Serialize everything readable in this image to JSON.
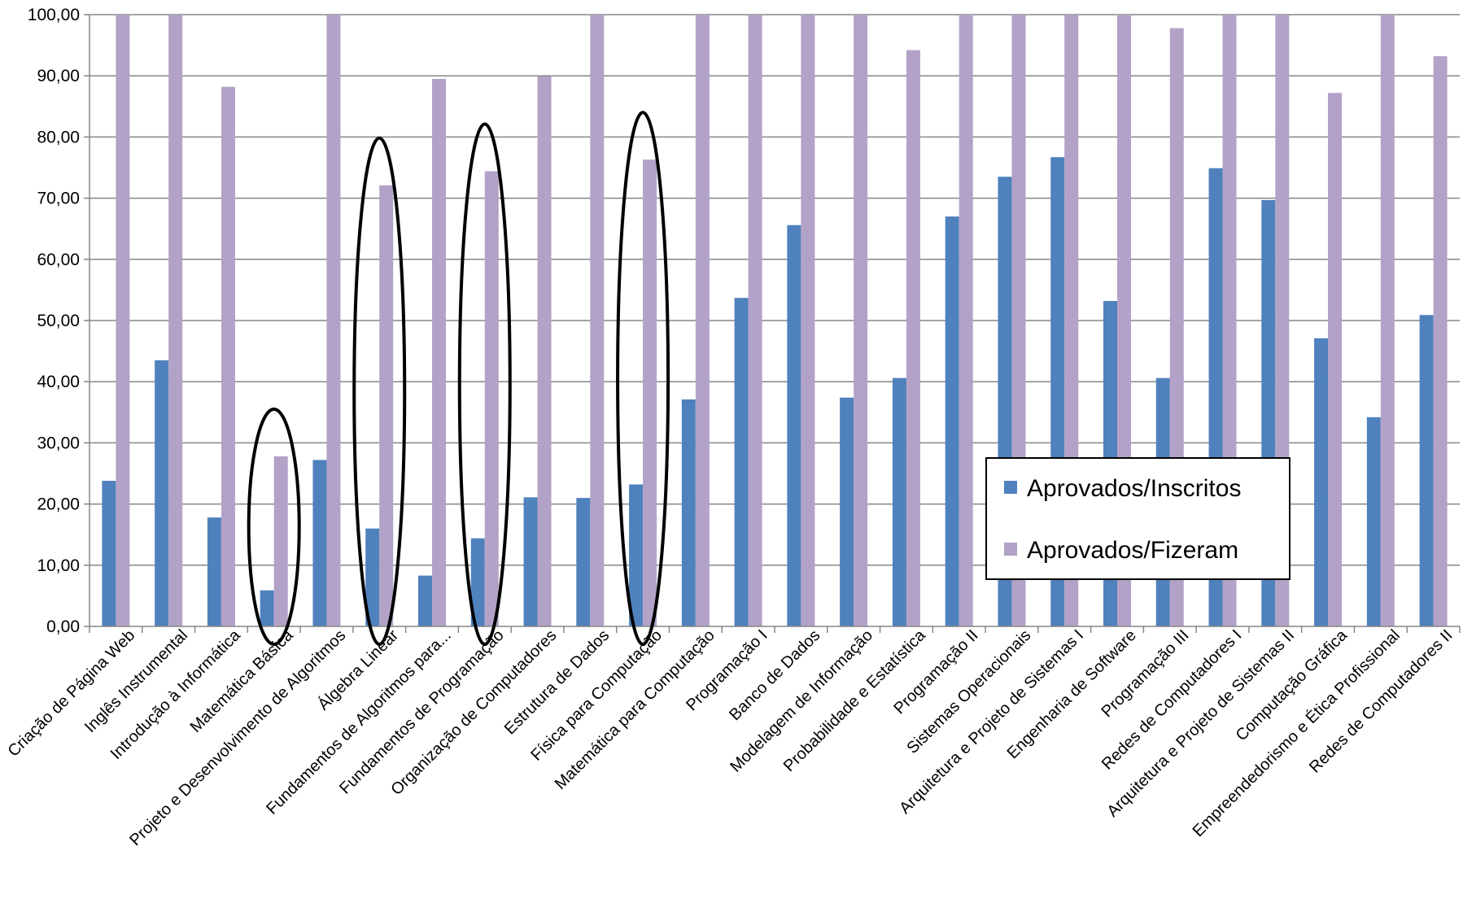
{
  "chart_data": {
    "type": "bar",
    "categories": [
      "Criação de Página Web",
      "Inglês Instrumental",
      "Introdução à Informática",
      "Matemática Básica",
      "Projeto e Desenvolvimento de Algoritmos",
      "Álgebra Linear",
      "Fundamentos de Algoritmos para...",
      "Fundamentos de Programação",
      "Organização de Computadores",
      "Estrutura de Dados",
      "Física para Computação",
      "Matemática para Computação",
      "Programação I",
      "Banco de Dados",
      "Modelagem de Informação",
      "Probabilidade e Estatística",
      "Programação II",
      "Sistemas Operacionais",
      "Arquitetura e Projeto de Sistemas I",
      "Engenharia de Software",
      "Programação III",
      "Redes de Computadores I",
      "Arquitetura e Projeto de Sistemas II",
      "Computação Gráfica",
      "Empreendedorismo e Ética Profissional",
      "Redes de Computadores II"
    ],
    "series": [
      {
        "name": "Aprovados/Inscritos",
        "color": "#4f81bd",
        "values": [
          23.8,
          43.5,
          17.8,
          5.9,
          27.2,
          16.0,
          8.3,
          14.4,
          21.1,
          21.0,
          23.2,
          37.1,
          53.7,
          65.6,
          37.4,
          40.6,
          67.0,
          73.5,
          76.7,
          53.2,
          40.6,
          74.9,
          69.7,
          47.1,
          34.2,
          50.9
        ]
      },
      {
        "name": "Aprovados/Fizeram",
        "color": "#b3a2c7",
        "values": [
          100,
          100,
          88.2,
          27.8,
          100,
          72.1,
          89.5,
          74.4,
          89.9,
          100,
          76.3,
          100,
          100,
          100,
          100,
          94.2,
          100,
          100,
          100,
          100,
          97.8,
          100,
          100,
          87.2,
          100,
          93.2
        ]
      }
    ],
    "yticks": [
      "0,00",
      "10,00",
      "20,00",
      "30,00",
      "40,00",
      "50,00",
      "60,00",
      "70,00",
      "80,00",
      "90,00",
      "100,00"
    ],
    "ylim": [
      0,
      100
    ],
    "grid": true,
    "legend_position": "bottom-right",
    "highlighted_categories": [
      3,
      5,
      7,
      10
    ]
  }
}
